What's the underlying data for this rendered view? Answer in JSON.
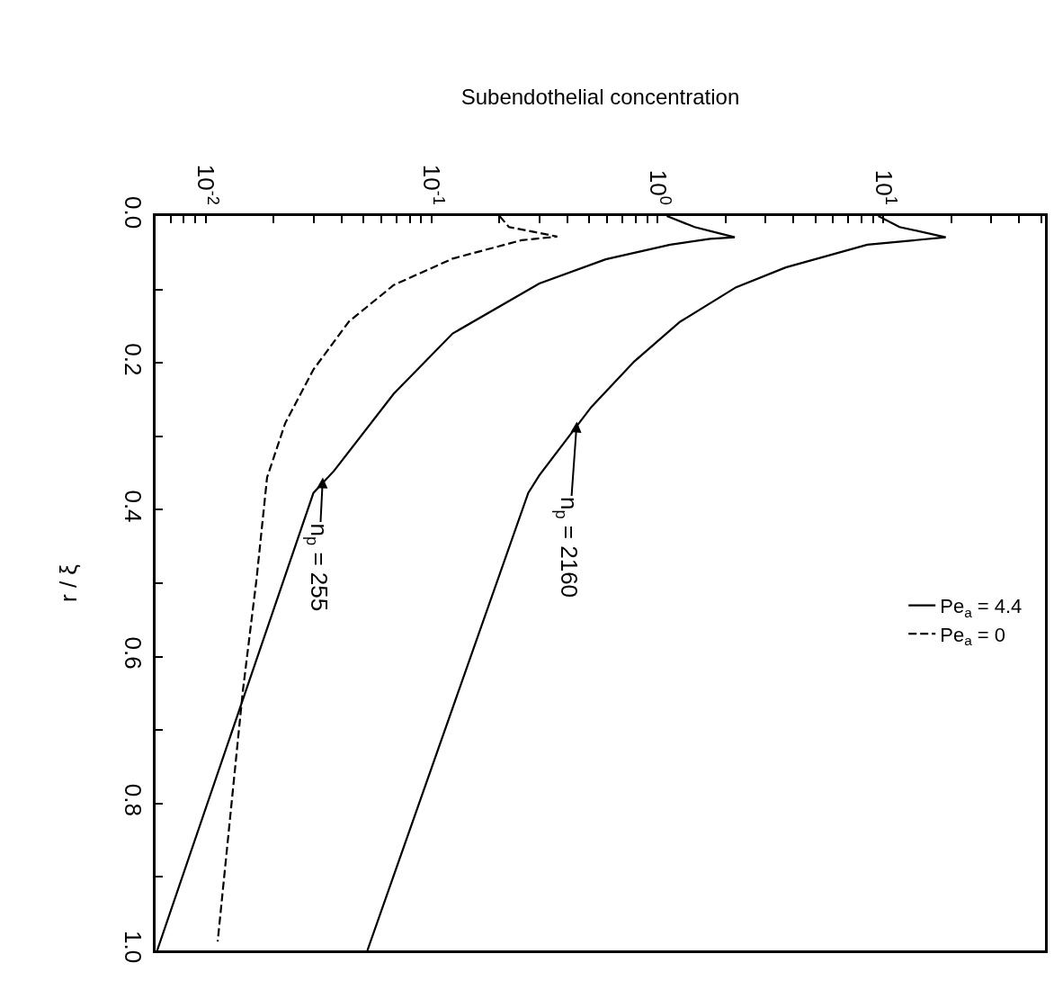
{
  "chart_data": {
    "type": "line",
    "xlabel": "Subendothelial concentration",
    "ylabel": "r / ξ",
    "log": "x",
    "xlim": [
      0.006,
      52
    ],
    "ylim": [
      1.0,
      0.0
    ],
    "yticks": [
      {
        "value": 0.0,
        "label": "0.0"
      },
      {
        "value": 0.1,
        "label": null
      },
      {
        "value": 0.2,
        "label": "0.2"
      },
      {
        "value": 0.3,
        "label": null
      },
      {
        "value": 0.4,
        "label": "0.4"
      },
      {
        "value": 0.5,
        "label": null
      },
      {
        "value": 0.6,
        "label": "0.6"
      },
      {
        "value": 0.7,
        "label": null
      },
      {
        "value": 0.8,
        "label": "0.8"
      },
      {
        "value": 0.9,
        "label": null
      },
      {
        "value": 1.0,
        "label": "1.0"
      }
    ],
    "xticks": [
      {
        "value": 0.007,
        "label": null
      },
      {
        "value": 0.008,
        "label": null
      },
      {
        "value": 0.009,
        "label": null
      },
      {
        "value": 0.01,
        "label": "10$^{-2}$"
      },
      {
        "value": 0.02,
        "label": null
      },
      {
        "value": 0.03,
        "label": null
      },
      {
        "value": 0.04,
        "label": null
      },
      {
        "value": 0.05,
        "label": null
      },
      {
        "value": 0.06,
        "label": null
      },
      {
        "value": 0.07,
        "label": null
      },
      {
        "value": 0.08,
        "label": null
      },
      {
        "value": 0.09,
        "label": null
      },
      {
        "value": 0.1,
        "label": "10$^{-1}$"
      },
      {
        "value": 0.2,
        "label": null
      },
      {
        "value": 0.3,
        "label": null
      },
      {
        "value": 0.4,
        "label": null
      },
      {
        "value": 0.5,
        "label": null
      },
      {
        "value": 0.6,
        "label": null
      },
      {
        "value": 0.7,
        "label": null
      },
      {
        "value": 0.8,
        "label": null
      },
      {
        "value": 0.9,
        "label": null
      },
      {
        "value": 1,
        "label": "10$^{0}$"
      },
      {
        "value": 2,
        "label": null
      },
      {
        "value": 3,
        "label": null
      },
      {
        "value": 4,
        "label": null
      },
      {
        "value": 5,
        "label": null
      },
      {
        "value": 6,
        "label": null
      },
      {
        "value": 7,
        "label": null
      },
      {
        "value": 8,
        "label": null
      },
      {
        "value": 9,
        "label": null
      },
      {
        "value": 10,
        "label": "10$^{1}$"
      },
      {
        "value": 20,
        "label": null
      },
      {
        "value": 30,
        "label": null
      },
      {
        "value": 40,
        "label": null
      },
      {
        "value": 50,
        "label": null
      }
    ],
    "grid": false,
    "marker": "none",
    "legend": "right",
    "series": [
      {
        "name": "Pe$_{a}$ = 4.4",
        "color": "#000000",
        "line_style": "solid",
        "values": [
          0,
          0.015,
          0.029,
          0.039,
          0.07,
          0.097,
          0.144,
          0.198,
          0.26,
          0.353,
          0.377,
          1.0
        ],
        "x": [
          9.5,
          11.8,
          18.9,
          8.5,
          3.7,
          2.23,
          1.26,
          0.79,
          0.51,
          0.3,
          0.268,
          0.052
        ]
      },
      {
        "color": "#000000",
        "line_style": "solid",
        "values": [
          0,
          0.015,
          0.029,
          0.031,
          0.039,
          0.059,
          0.092,
          0.16,
          0.242,
          0.347,
          0.377,
          1.0
        ],
        "x": [
          1.1,
          1.46,
          2.2,
          1.71,
          1.14,
          0.59,
          0.3,
          0.124,
          0.068,
          0.037,
          0.03,
          0.0061
        ]
      },
      {
        "name": "Pe$_{a}$ = 0",
        "color": "#000000",
        "line_style": "dashed",
        "values": [
          0,
          0.015,
          0.028,
          0.033,
          0.058,
          0.094,
          0.144,
          0.209,
          0.282,
          0.356,
          0.494,
          0.647,
          0.988
        ],
        "x": [
          0.2,
          0.22,
          0.36,
          0.25,
          0.124,
          0.068,
          0.043,
          0.03,
          0.0225,
          0.0187,
          0.0168,
          0.0146,
          0.0113
        ]
      }
    ],
    "annotations": [
      {
        "text": "n$_{p}$ = 2160",
        "x": 0.44,
        "y": 0.28
      },
      {
        "text": "n$_{p}$ = 255",
        "x": 0.033,
        "y": 0.356
      }
    ]
  }
}
